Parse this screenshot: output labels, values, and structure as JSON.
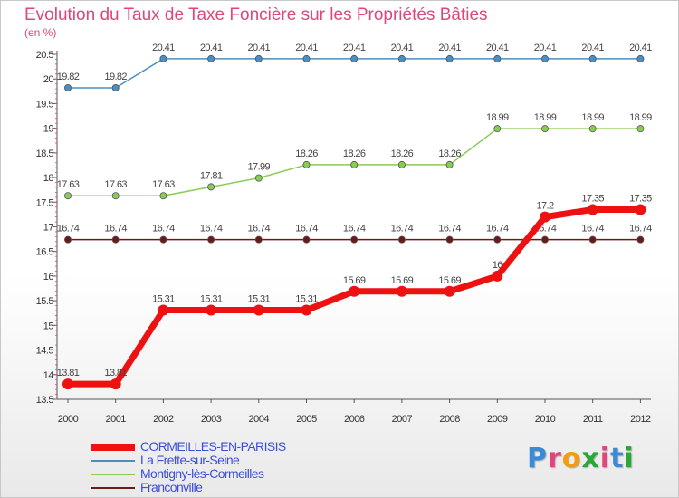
{
  "title": "Evolution du Taux de Taxe Foncière sur les Propriétés Bâties",
  "unit": "(en %)",
  "logo": {
    "text": "Proxiti",
    "colors": [
      "#3a8ad6",
      "#e0457b",
      "#f39c12",
      "#2aa836",
      "#e0457b",
      "#3a8ad6",
      "#2aa836"
    ]
  },
  "chart_data": {
    "type": "line",
    "title": "Evolution du Taux de Taxe Foncière sur les Propriétés Bâties",
    "ylabel": "(en %)",
    "xlabel": "",
    "x": [
      "2000",
      "2001",
      "2002",
      "2003",
      "2004",
      "2005",
      "2006",
      "2007",
      "2008",
      "2009",
      "2010",
      "2011",
      "2012"
    ],
    "ylim": [
      13.5,
      20.5
    ],
    "yticks": [
      "13.5",
      "14",
      "14.5",
      "15",
      "15.5",
      "16",
      "16.5",
      "17",
      "17.5",
      "18",
      "18.5",
      "19",
      "19.5",
      "20",
      "20.5"
    ],
    "grid": false,
    "series": [
      {
        "name": "La Frette-sur-Seine",
        "color": "#4a8ec2",
        "values": [
          19.82,
          19.82,
          20.41,
          20.41,
          20.41,
          20.41,
          20.41,
          20.41,
          20.41,
          20.41,
          20.41,
          20.41,
          20.41
        ],
        "labels": [
          "19.82",
          "19.82",
          "20.41",
          "20.41",
          "20.41",
          "20.41",
          "20.41",
          "20.41",
          "20.41",
          "20.41",
          "20.41",
          "20.41",
          "20.41"
        ]
      },
      {
        "name": "Montigny-lès-Cormeilles",
        "color": "#88cc55",
        "values": [
          17.63,
          17.63,
          17.63,
          17.81,
          17.99,
          18.26,
          18.26,
          18.26,
          18.26,
          18.99,
          18.99,
          18.99,
          18.99
        ],
        "labels": [
          "17.63",
          "17.63",
          "17.63",
          "17.81",
          "17.99",
          "18.26",
          "18.26",
          "18.26",
          "18.26",
          "18.99",
          "18.99",
          "18.99",
          "18.99"
        ]
      },
      {
        "name": "Franconville",
        "color": "#6b1a1a",
        "values": [
          16.74,
          16.74,
          16.74,
          16.74,
          16.74,
          16.74,
          16.74,
          16.74,
          16.74,
          16.74,
          16.74,
          16.74,
          16.74
        ],
        "labels": [
          "16.74",
          "16.74",
          "16.74",
          "16.74",
          "16.74",
          "16.74",
          "16.74",
          "16.74",
          "16.74",
          "16.74",
          "16.74",
          "16.74",
          "16.74"
        ]
      },
      {
        "name": "CORMEILLES-EN-PARISIS",
        "color": "#ee1111",
        "values": [
          13.81,
          13.81,
          15.31,
          15.31,
          15.31,
          15.31,
          15.69,
          15.69,
          15.69,
          16.0,
          17.2,
          17.35,
          17.35
        ],
        "labels": [
          "13.81",
          "13.81",
          "15.31",
          "15.31",
          "15.31",
          "15.31",
          "15.69",
          "15.69",
          "15.69",
          "16",
          "17.2",
          "17.35",
          "17.35"
        ]
      }
    ],
    "legend": [
      {
        "name": "CORMEILLES-EN-PARISIS",
        "color": "#ee1111"
      },
      {
        "name": "La Frette-sur-Seine",
        "color": "#4a8ec2"
      },
      {
        "name": "Montigny-lès-Cormeilles",
        "color": "#88cc55"
      },
      {
        "name": "Franconville",
        "color": "#6b1a1a"
      }
    ]
  }
}
